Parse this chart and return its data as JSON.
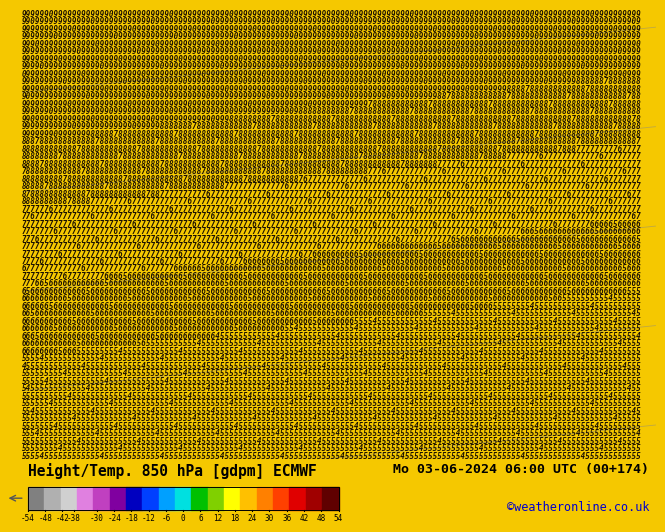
{
  "title_left": "Height/Temp. 850 hPa [gdpm] ECMWF",
  "title_right": "Mo 03-06-2024 06:00 UTC (00+174)",
  "credit": "©weatheronline.co.uk",
  "colorbar_ticks": [
    -54,
    -48,
    -42,
    -38,
    -30,
    -24,
    -18,
    -12,
    -6,
    0,
    6,
    12,
    18,
    24,
    30,
    36,
    42,
    48,
    54
  ],
  "colorbar_tick_labels": [
    "-54",
    "-48",
    "-42",
    "-38",
    "-30",
    "-24",
    "-18",
    "-12",
    "-6",
    "0",
    "6",
    "12",
    "18",
    "24",
    "30",
    "36",
    "42",
    "48",
    "54"
  ],
  "colorbar_colors": [
    "#808080",
    "#b0b0b0",
    "#d0d0d0",
    "#e080e0",
    "#c040c0",
    "#8000a0",
    "#0000c0",
    "#0040ff",
    "#00a0ff",
    "#00e0e0",
    "#00c000",
    "#80d000",
    "#ffff00",
    "#ffc000",
    "#ff8000",
    "#ff4000",
    "#e00000",
    "#a00000",
    "#600000"
  ],
  "bg_color": "#f5d020",
  "text_color": "#000000",
  "credit_color": "#0000cc",
  "main_bg": "#f5c800",
  "figure_bg": "#f5c800",
  "legend_bg": "#f5d835",
  "char_color": "#1a1000",
  "char_color2": "#000000"
}
